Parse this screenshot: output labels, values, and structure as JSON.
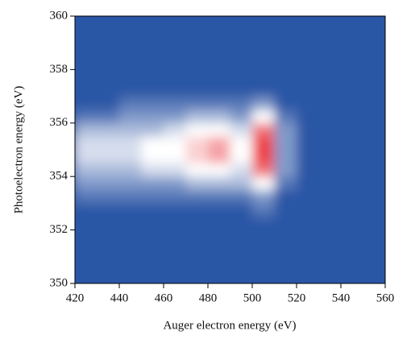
{
  "chart_data": {
    "type": "heatmap",
    "x_label": "Auger electron energy (eV)",
    "y_label": "Photoelectron energy (eV)",
    "xlim": [
      420,
      560
    ],
    "ylim": [
      350,
      360
    ],
    "xticks": [
      420,
      440,
      460,
      480,
      500,
      520,
      540,
      560
    ],
    "yticks": [
      350,
      352,
      354,
      356,
      358,
      360
    ],
    "xbins": [
      420,
      430,
      440,
      450,
      460,
      470,
      480,
      490,
      500,
      510,
      520,
      530,
      540,
      550,
      560
    ],
    "ybins": [
      350,
      350.5,
      351,
      351.5,
      352,
      352.5,
      353,
      353.5,
      354,
      354.5,
      355,
      355.5,
      356,
      356.5,
      357,
      357.5,
      358,
      358.5,
      359,
      359.5,
      360
    ],
    "zlim": [
      0,
      10
    ],
    "colors": [
      "#2c56a6",
      "#ffffff",
      "#e8141c"
    ],
    "z": [
      [
        0,
        0,
        0,
        0,
        0,
        0,
        0,
        0,
        0,
        0,
        0,
        0,
        0,
        0
      ],
      [
        0,
        0,
        0,
        0,
        0,
        0,
        0,
        0,
        0,
        0,
        0,
        0,
        0,
        0
      ],
      [
        0,
        0,
        0,
        0,
        0,
        0,
        0,
        0,
        0,
        0,
        0,
        0,
        0,
        0
      ],
      [
        0,
        0,
        0,
        0,
        0,
        0,
        0,
        0,
        0,
        0,
        0,
        0,
        0,
        0
      ],
      [
        0,
        0,
        0,
        0,
        0,
        0,
        0,
        0,
        0,
        0,
        0,
        0,
        0,
        0
      ],
      [
        0,
        0,
        0,
        0,
        0,
        0,
        0,
        0,
        1,
        0,
        0,
        0,
        0,
        0
      ],
      [
        1,
        1,
        1,
        1,
        1,
        1,
        1,
        1,
        2,
        0,
        0,
        0,
        0,
        0
      ],
      [
        2,
        2,
        2,
        2,
        2,
        3,
        3,
        3,
        5,
        1,
        0,
        0,
        0,
        0
      ],
      [
        3,
        3,
        3,
        4,
        4,
        5,
        5,
        4,
        8,
        2,
        0,
        0,
        0,
        0
      ],
      [
        4,
        4,
        4,
        5,
        5,
        6,
        7,
        5,
        9,
        2,
        0,
        0,
        0,
        0
      ],
      [
        4,
        4,
        4,
        5,
        5,
        6,
        7,
        5,
        9,
        2,
        0,
        0,
        0,
        0
      ],
      [
        3,
        3,
        3,
        3,
        4,
        5,
        5,
        4,
        8,
        2,
        0,
        0,
        0,
        0
      ],
      [
        1,
        1,
        2,
        2,
        2,
        3,
        3,
        2,
        5,
        1,
        0,
        0,
        0,
        0
      ],
      [
        0,
        0,
        1,
        1,
        1,
        1,
        1,
        1,
        2,
        0,
        0,
        0,
        0,
        0
      ],
      [
        0,
        0,
        0,
        0,
        0,
        0,
        0,
        0,
        0,
        0,
        0,
        0,
        0,
        0
      ],
      [
        0,
        0,
        0,
        0,
        0,
        0,
        0,
        0,
        0,
        0,
        0,
        0,
        0,
        0
      ],
      [
        0,
        0,
        0,
        0,
        0,
        0,
        0,
        0,
        0,
        0,
        0,
        0,
        0,
        0
      ],
      [
        0,
        0,
        0,
        0,
        0,
        0,
        0,
        0,
        0,
        0,
        0,
        0,
        0,
        0
      ],
      [
        0,
        0,
        0,
        0,
        0,
        0,
        0,
        0,
        0,
        0,
        0,
        0,
        0,
        0
      ],
      [
        0,
        0,
        0,
        0,
        0,
        0,
        0,
        0,
        0,
        0,
        0,
        0,
        0,
        0
      ]
    ]
  }
}
